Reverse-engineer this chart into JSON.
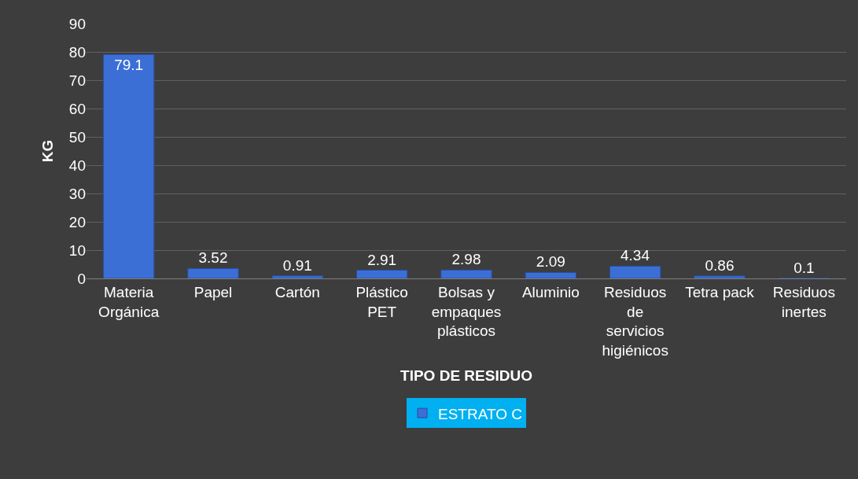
{
  "chart_data": {
    "type": "bar",
    "xlabel": "TIPO DE RESIDUO",
    "ylabel": "KG",
    "categories": [
      "Materia Orgánica",
      "Papel",
      "Cartón",
      "Plástico PET",
      "Bolsas y empaques plásticos",
      "Aluminio",
      "Residuos de servicios higiénicos",
      "Tetra pack",
      "Residuos inertes"
    ],
    "series": [
      {
        "name": "ESTRATO C",
        "color": "#3b6fd6",
        "values": [
          79.1,
          3.52,
          0.91,
          2.91,
          2.98,
          2.09,
          4.34,
          0.86,
          0.1
        ]
      }
    ],
    "ylim": [
      0,
      90
    ],
    "yticks": [
      0,
      10,
      20,
      30,
      40,
      50,
      60,
      70,
      80,
      90
    ],
    "grid": "y",
    "legend": "bottom",
    "data_labels": true
  }
}
